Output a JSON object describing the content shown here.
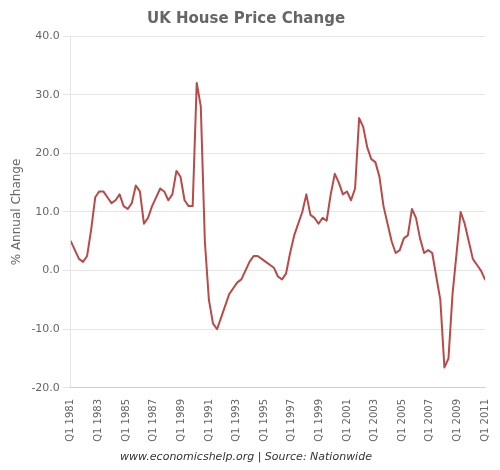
{
  "chart_data": {
    "type": "line",
    "title": "UK House Price Change",
    "ylabel": "% Annual Change",
    "footer": "www.economicshelp.org | Source: Nationwide",
    "color": "#b94a48",
    "grid": "y",
    "xlim": [
      0,
      120
    ],
    "xticks": [
      {
        "value": 0,
        "label": "Q1 1981"
      },
      {
        "value": 8,
        "label": "Q1 1983"
      },
      {
        "value": 16,
        "label": "Q1 1985"
      },
      {
        "value": 24,
        "label": "Q1 1987"
      },
      {
        "value": 32,
        "label": "Q1 1989"
      },
      {
        "value": 40,
        "label": "Q1 1991"
      },
      {
        "value": 48,
        "label": "Q1 1993"
      },
      {
        "value": 56,
        "label": "Q1 1995"
      },
      {
        "value": 64,
        "label": "Q1 1997"
      },
      {
        "value": 72,
        "label": "Q1 1999"
      },
      {
        "value": 80,
        "label": "Q1 2001"
      },
      {
        "value": 88,
        "label": "Q1 2003"
      },
      {
        "value": 96,
        "label": "Q1 2005"
      },
      {
        "value": 104,
        "label": "Q1 2007"
      },
      {
        "value": 112,
        "label": "Q1 2009"
      },
      {
        "value": 120,
        "label": "Q1 2011"
      }
    ],
    "ylim": [
      -20.0,
      40.0
    ],
    "yticks": [
      {
        "value": -20.0,
        "label": "-20.0"
      },
      {
        "value": -10.0,
        "label": "-10.0"
      },
      {
        "value": 0.0,
        "label": "0.0"
      },
      {
        "value": 10.0,
        "label": "10.0"
      },
      {
        "value": 20.0,
        "label": "20.0"
      },
      {
        "value": 30.0,
        "label": "30.0"
      },
      {
        "value": 40.0,
        "label": "40.0"
      }
    ],
    "x": [
      0,
      1.1765,
      2.3529,
      3.5294,
      4.7059,
      5.8824,
      7.0588,
      8.2353,
      9.4118,
      10.5882,
      11.7647,
      12.9412,
      14.1176,
      15.2941,
      16.4706,
      17.6471,
      18.8235,
      20,
      21.1765,
      22.3529,
      23.5294,
      24.7059,
      25.8824,
      27.0588,
      28.2353,
      29.4118,
      30.5882,
      31.7647,
      32.9412,
      34.1176,
      35.2941,
      36.4706,
      37.6471,
      38.8235,
      40,
      41.1765,
      42.3529,
      43.5294,
      44.7059,
      45.8824,
      47.0588,
      48.2353,
      49.4118,
      50.5882,
      51.7647,
      52.9412,
      54.1176,
      55.2941,
      56.4706,
      57.6471,
      58.8235,
      60,
      61.1765,
      62.3529,
      63.5294,
      64.7059,
      65.8824,
      67.0588,
      68.2353,
      69.4118,
      70.5882,
      71.7647,
      72.9412,
      74.1176,
      75.2941,
      76.4706,
      77.6471,
      78.8235,
      80,
      81.1765,
      82.3529,
      83.5294,
      84.7059,
      85.8824,
      87.0588,
      88.2353,
      89.4118,
      90.5882,
      91.7647,
      92.9412,
      94.1176,
      95.2941,
      96.4706,
      97.6471,
      98.8235,
      100,
      101.1765,
      102.3529,
      103.5294,
      104.7059,
      105.8824,
      107.0588,
      108.2353,
      109.4118,
      110.5882,
      111.7647,
      112.9412,
      114.1176,
      115.2941,
      116.4706,
      117.6471,
      118.8235,
      120
    ],
    "values": [
      5.0,
      3.5,
      2.0,
      1.5,
      2.5,
      7.0,
      12.5,
      13.5,
      13.5,
      12.5,
      11.5,
      12.0,
      13.0,
      11.0,
      10.5,
      11.5,
      14.5,
      13.5,
      8.0,
      9.0,
      11.0,
      12.5,
      14.0,
      13.5,
      12.0,
      13.0,
      17.0,
      16.0,
      12.0,
      11.0,
      11.0,
      32.0,
      28.0,
      5.0,
      -5.0,
      -9.0,
      -10.0,
      -8.0,
      -6.0,
      -4.0,
      -3.0,
      -2.0,
      -1.5,
      0.0,
      1.5,
      2.5,
      2.5,
      2.0,
      1.5,
      1.0,
      0.5,
      -1.0,
      -1.5,
      -0.5,
      3.0,
      6.0,
      8.0,
      10.0,
      13.0,
      9.5,
      9.0,
      8.0,
      9.0,
      8.5,
      13.0,
      16.5,
      15.0,
      13.0,
      13.5,
      12.0,
      14.0,
      26.0,
      24.5,
      21.0,
      19.0,
      18.5,
      16.0,
      11.0,
      8.0,
      5.0,
      3.0,
      3.5,
      5.5,
      6.0,
      10.5,
      9.0,
      5.5,
      3.0,
      3.5,
      3.0,
      -1.0,
      -5.0,
      -16.5,
      -15.0,
      -4.0,
      3.0,
      10.0,
      8.0,
      5.0,
      2.0,
      1.0,
      0.0,
      -1.5
    ]
  }
}
